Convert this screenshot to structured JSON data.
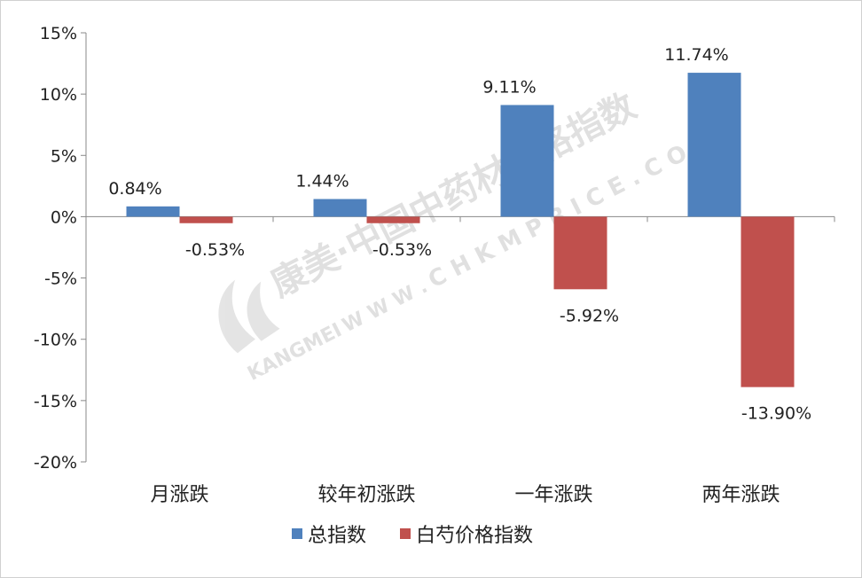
{
  "chart_data": {
    "type": "bar",
    "categories": [
      "月涨跌",
      "较年初涨跌",
      "一年涨跌",
      "两年涨跌"
    ],
    "series": [
      {
        "name": "总指数",
        "values": [
          0.84,
          1.44,
          9.11,
          11.74
        ],
        "labels": [
          "0.84%",
          "1.44%",
          "9.11%",
          "11.74%"
        ],
        "color": "#4f81bd"
      },
      {
        "name": "白芍价格指数",
        "values": [
          -0.53,
          -0.53,
          -5.92,
          -13.9
        ],
        "labels": [
          "-0.53%",
          "-0.53%",
          "-5.92%",
          "-13.90%"
        ],
        "color": "#c0504d"
      }
    ],
    "ylim": [
      -20,
      15
    ],
    "yticks": [
      {
        "value": 15,
        "label": "15%"
      },
      {
        "value": 10,
        "label": "10%"
      },
      {
        "value": 5,
        "label": "5%"
      },
      {
        "value": 0,
        "label": "0%"
      },
      {
        "value": -5,
        "label": "-5%"
      },
      {
        "value": -10,
        "label": "-10%"
      },
      {
        "value": -15,
        "label": "-15%"
      },
      {
        "value": -20,
        "label": "-20%"
      }
    ],
    "grid": false,
    "legend_position": "bottom"
  },
  "watermark": {
    "brand": "康美·中国中药材价格指数",
    "url": "C H K M P R I C E . C O M",
    "www": "W W W .",
    "logo_text": "KANGMEI"
  }
}
